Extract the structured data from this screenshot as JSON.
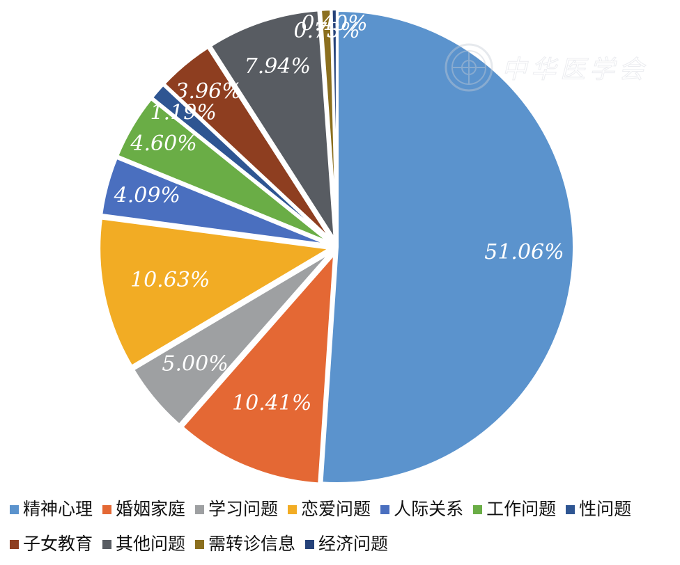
{
  "chart_data": {
    "type": "pie",
    "categories": [
      "精神心理",
      "婚姻家庭",
      "学习问题",
      "恋爱问题",
      "人际关系",
      "工作问题",
      "性问题",
      "子女教育",
      "其他问题",
      "需转诊信息",
      "经济问题"
    ],
    "values": [
      51.06,
      10.41,
      5.0,
      10.63,
      4.09,
      4.6,
      1.19,
      3.96,
      7.94,
      0.73,
      0.4
    ],
    "labels": [
      "51.06%",
      "10.41%",
      "5.00%",
      "10.63%",
      "4.09%",
      "4.60%",
      "1.19%",
      "3.96%",
      "7.94%",
      "0.73%",
      "0.40%"
    ],
    "colors": [
      "#5b93cd",
      "#e46834",
      "#9ea0a2",
      "#f2ac24",
      "#4a6fbf",
      "#6aad46",
      "#2e5592",
      "#8e3e20",
      "#585c62",
      "#8b6f1e",
      "#25427a"
    ],
    "start_angle": "12 o'clock",
    "direction": "clockwise",
    "legend_position": "bottom"
  },
  "watermark": {
    "text": "中华医学会",
    "seal_icon": "seal-icon"
  }
}
